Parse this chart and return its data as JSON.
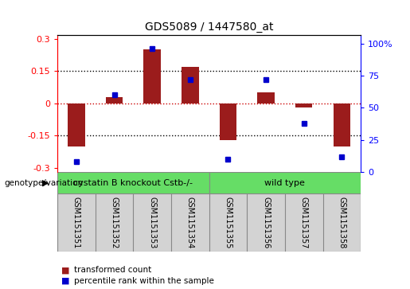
{
  "title": "GDS5089 / 1447580_at",
  "samples": [
    "GSM1151351",
    "GSM1151352",
    "GSM1151353",
    "GSM1151354",
    "GSM1151355",
    "GSM1151356",
    "GSM1151357",
    "GSM1151358"
  ],
  "bar_values": [
    -0.2,
    0.03,
    0.25,
    0.17,
    -0.17,
    0.05,
    -0.02,
    -0.2
  ],
  "dot_values": [
    8,
    60,
    96,
    72,
    10,
    72,
    38,
    12
  ],
  "ylim_left": [
    -0.32,
    0.32
  ],
  "ylim_right": [
    0,
    107
  ],
  "yticks_left": [
    -0.3,
    -0.15,
    0,
    0.15,
    0.3
  ],
  "yticks_right": [
    0,
    25,
    50,
    75,
    100
  ],
  "ytick_labels_right": [
    "0",
    "25",
    "50",
    "75",
    "100%"
  ],
  "bar_color": "#9B1C1C",
  "dot_color": "#0000CC",
  "hline_color": "#CC0000",
  "groups": [
    {
      "label": "cystatin B knockout Cstb-/-",
      "n_samples": 4,
      "color": "#66DD66"
    },
    {
      "label": "wild type",
      "n_samples": 4,
      "color": "#66DD66"
    }
  ],
  "group_row_label": "genotype/variation",
  "legend_bar_label": "transformed count",
  "legend_dot_label": "percentile rank within the sample",
  "bar_width": 0.45,
  "figsize": [
    5.15,
    3.63
  ],
  "dpi": 100
}
